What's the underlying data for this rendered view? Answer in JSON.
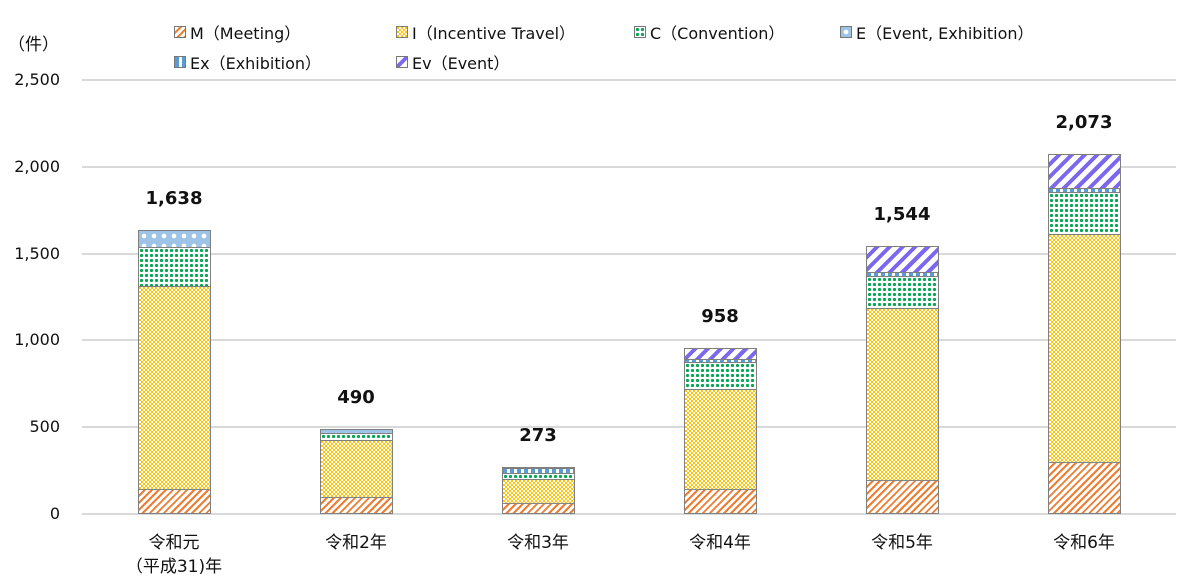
{
  "chart_data": {
    "type": "bar",
    "stacked": true,
    "title": "",
    "ylabel": "（件）",
    "xlabel": "",
    "ylim": [
      0,
      2500
    ],
    "yticks": [
      "0",
      "500",
      "1,000",
      "1,500",
      "2,000",
      "2,500"
    ],
    "grid": true,
    "legend_position": "top",
    "categories": [
      "令和元\n(平成31)年",
      "令和2年",
      "令和3年",
      "令和4年",
      "令和5年",
      "令和6年"
    ],
    "series": [
      {
        "key": "M",
        "name": "M（Meeting）",
        "color": "#ed7d31",
        "values": [
          132,
          86,
          52,
          132,
          184,
          288
        ]
      },
      {
        "key": "I",
        "name": "I（Incentive Travel）",
        "color": "#ffc000",
        "values": [
          1181,
          340,
          144,
          588,
          997,
          1325
        ]
      },
      {
        "key": "C",
        "name": "C（Convention）",
        "color": "#00a650",
        "values": [
          225,
          41,
          40,
          156,
          190,
          242
        ]
      },
      {
        "key": "E",
        "name": "E（Event, Exhibition）",
        "color": "#9dc3e6",
        "values": [
          100,
          23,
          0,
          0,
          0,
          0
        ]
      },
      {
        "key": "Ex",
        "name": "Ex（Exhibition）",
        "color": "#5b9bd5",
        "values": [
          0,
          0,
          30,
          17,
          23,
          23
        ]
      },
      {
        "key": "Ev",
        "name": "Ev（Event）",
        "color": "#7b68ee",
        "values": [
          0,
          0,
          7,
          65,
          150,
          195
        ]
      }
    ],
    "totals": [
      "1,638",
      "490",
      "273",
      "958",
      "1,544",
      "2,073"
    ],
    "total_values": [
      1638,
      490,
      273,
      958,
      1544,
      2073
    ]
  },
  "unit_label": "（件）",
  "legend": [
    {
      "label": "M（Meeting）"
    },
    {
      "label": "I（Incentive Travel）"
    },
    {
      "label": "C（Convention）"
    },
    {
      "label": "E（Event, Exhibition）"
    },
    {
      "label": "Ex（Exhibition）"
    },
    {
      "label": "Ev（Event）"
    }
  ],
  "xlabels": [
    {
      "line1": "令和元",
      "line2": "（平成31)年"
    },
    {
      "line1": "令和2年",
      "line2": ""
    },
    {
      "line1": "令和3年",
      "line2": ""
    },
    {
      "line1": "令和4年",
      "line2": ""
    },
    {
      "line1": "令和5年",
      "line2": ""
    },
    {
      "line1": "令和6年",
      "line2": ""
    }
  ]
}
